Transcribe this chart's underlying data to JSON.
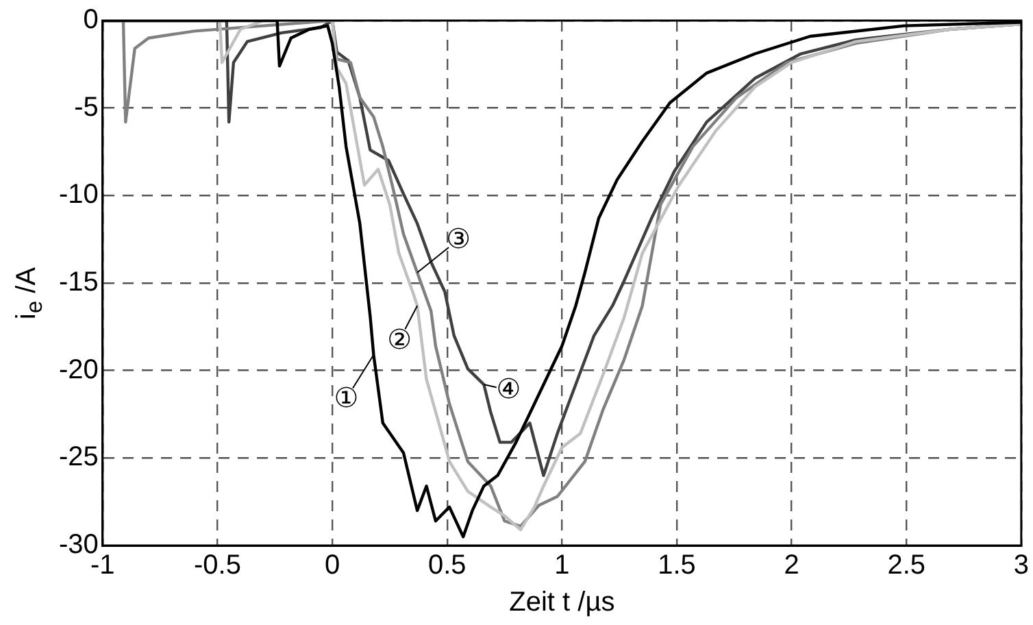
{
  "chart_data": {
    "type": "line",
    "xlabel": "Zeit t /µs",
    "ylabel": "i$_{e}$ /A",
    "xlim": [
      -1,
      3
    ],
    "xticks": [
      -1,
      -0.5,
      0,
      0.5,
      1,
      1.5,
      2,
      2.5,
      3
    ],
    "ylim": [
      -30,
      0
    ],
    "yticks": [
      -30,
      -25,
      -20,
      -15,
      -10,
      -5,
      0
    ],
    "grid": true,
    "legend": false,
    "marker": "none",
    "line_style": "solid",
    "annotations": [
      {
        "text": "①",
        "x": 0.18,
        "y": -19.1
      },
      {
        "text": "②",
        "x": 0.37,
        "y": -16.3
      },
      {
        "text": "③",
        "x": 0.37,
        "y": -14.4
      },
      {
        "text": "④",
        "x": 0.66,
        "y": -20.8
      }
    ],
    "series": [
      {
        "color": "#000000",
        "x": [
          -1,
          -0.24,
          -0.23,
          -0.18,
          -0.1,
          -0.02,
          0,
          0.03,
          0.06,
          0.12,
          0.165,
          0.18,
          0.22,
          0.31,
          0.37,
          0.41,
          0.45,
          0.51,
          0.57,
          0.61,
          0.66,
          0.72,
          0.8,
          0.88,
          0.96,
          1.0,
          1.06,
          1.1,
          1.16,
          1.24,
          1.35,
          1.47,
          1.63,
          1.84,
          2.08,
          2.49,
          3
        ],
        "values": [
          0,
          0,
          -2.6,
          -1,
          -0.5,
          -0.3,
          -1.3,
          -3.8,
          -7.2,
          -11.6,
          -16.9,
          -19.1,
          -23,
          -24.7,
          -28,
          -26.6,
          -28.6,
          -27.8,
          -29.5,
          -28,
          -26.6,
          -26,
          -24.1,
          -21.9,
          -19.7,
          -18.6,
          -16.3,
          -14.4,
          -11.3,
          -9.1,
          -6.9,
          -4.7,
          -3,
          -1.9,
          -0.9,
          -0.3,
          -0.1
        ]
      },
      {
        "color": "#c0c0c0",
        "x": [
          -1,
          -0.49,
          -0.48,
          -0.4,
          -0.3,
          0,
          0.02,
          0.06,
          0.14,
          0.2,
          0.25,
          0.29,
          0.35,
          0.37,
          0.41,
          0.47,
          0.51,
          0.59,
          0.69,
          0.75,
          0.82,
          0.88,
          0.92,
          1.0,
          1.08,
          1.18,
          1.27,
          1.35,
          1.51,
          1.67,
          1.84,
          2.0,
          2.28,
          2.69,
          3
        ],
        "values": [
          0,
          0,
          -2.4,
          -0.5,
          0,
          0,
          -2.7,
          -3.6,
          -9.4,
          -8.5,
          -10.5,
          -13.3,
          -15.5,
          -16.3,
          -20.5,
          -23.3,
          -25.2,
          -26.9,
          -27.8,
          -28.3,
          -29.1,
          -27.8,
          -26.6,
          -24.4,
          -23.6,
          -20.2,
          -17,
          -13.3,
          -9.4,
          -6.3,
          -3.8,
          -2.4,
          -1.2,
          -0.5,
          -0.2
        ]
      },
      {
        "color": "#808080",
        "x": [
          -1,
          -0.91,
          -0.9,
          -0.86,
          -0.8,
          -0.6,
          -0.3,
          0,
          0.02,
          0.08,
          0.12,
          0.18,
          0.22,
          0.27,
          0.31,
          0.37,
          0.43,
          0.45,
          0.51,
          0.59,
          0.69,
          0.75,
          0.82,
          0.9,
          0.98,
          1.1,
          1.18,
          1.27,
          1.35,
          1.43,
          1.57,
          1.76,
          1.98,
          2.28,
          2.69,
          3
        ],
        "values": [
          0,
          0,
          -5.8,
          -1.6,
          -1,
          -0.6,
          -0.3,
          0,
          -2.2,
          -2.4,
          -4.4,
          -5.5,
          -7.2,
          -9.9,
          -12.2,
          -14.4,
          -16.6,
          -18.6,
          -21.9,
          -25.2,
          -26.6,
          -28.6,
          -28.9,
          -27.7,
          -27.2,
          -25.2,
          -22.2,
          -19.4,
          -16.3,
          -10.5,
          -7.2,
          -4.4,
          -2.4,
          -1.3,
          -0.5,
          -0.2
        ]
      },
      {
        "color": "#404040",
        "x": [
          -1,
          -0.46,
          -0.45,
          -0.43,
          -0.37,
          -0.22,
          -0.05,
          0,
          0.02,
          0.07,
          0.12,
          0.165,
          0.245,
          0.31,
          0.37,
          0.43,
          0.49,
          0.53,
          0.59,
          0.66,
          0.69,
          0.73,
          0.78,
          0.86,
          0.92,
          0.98,
          1.06,
          1.14,
          1.22,
          1.27,
          1.39,
          1.49,
          1.63,
          1.84,
          2.04,
          2.28,
          2.69,
          3
        ],
        "values": [
          0,
          0,
          -5.8,
          -2.4,
          -1.2,
          -0.7,
          -0.4,
          0,
          -1.8,
          -2.3,
          -4.4,
          -7.4,
          -8,
          -9.9,
          -11.6,
          -13.8,
          -15.5,
          -18,
          -19.9,
          -20.8,
          -22.4,
          -24.1,
          -24.1,
          -23,
          -26,
          -23.6,
          -20.8,
          -18,
          -16.3,
          -14.9,
          -11.3,
          -8.6,
          -5.8,
          -3.3,
          -1.9,
          -1.1,
          -0.5,
          -0.2
        ]
      }
    ]
  }
}
